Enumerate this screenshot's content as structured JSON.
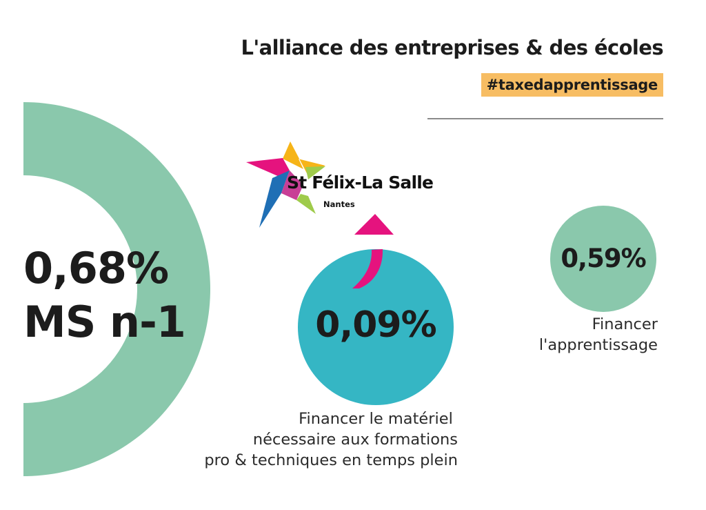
{
  "header": {
    "title": "L'alliance des entreprises & des écoles",
    "hashtag": "#taxedapprentissage"
  },
  "logo": {
    "name": "St Félix-La Salle",
    "city": "Nantes"
  },
  "chart_data": {
    "type": "pie",
    "total": {
      "value": "0,68%",
      "sublabel": "MS n-1",
      "number": 0.68
    },
    "slices": [
      {
        "label": "0,09%",
        "value": 0.09,
        "caption": [
          "Financer le matériel ",
          "nécessaire aux formations",
          "pro & techniques en temps plein"
        ],
        "color": "#35b6c4"
      },
      {
        "label": "0,59%",
        "value": 0.59,
        "caption": [
          "Financer",
          "l'apprentissage"
        ],
        "color": "#8ac8ac"
      }
    ]
  },
  "colors": {
    "teal": "#35b6c4",
    "green": "#8ac8ac",
    "highlight": "#f7bd63",
    "arrow": "#e5137e"
  }
}
